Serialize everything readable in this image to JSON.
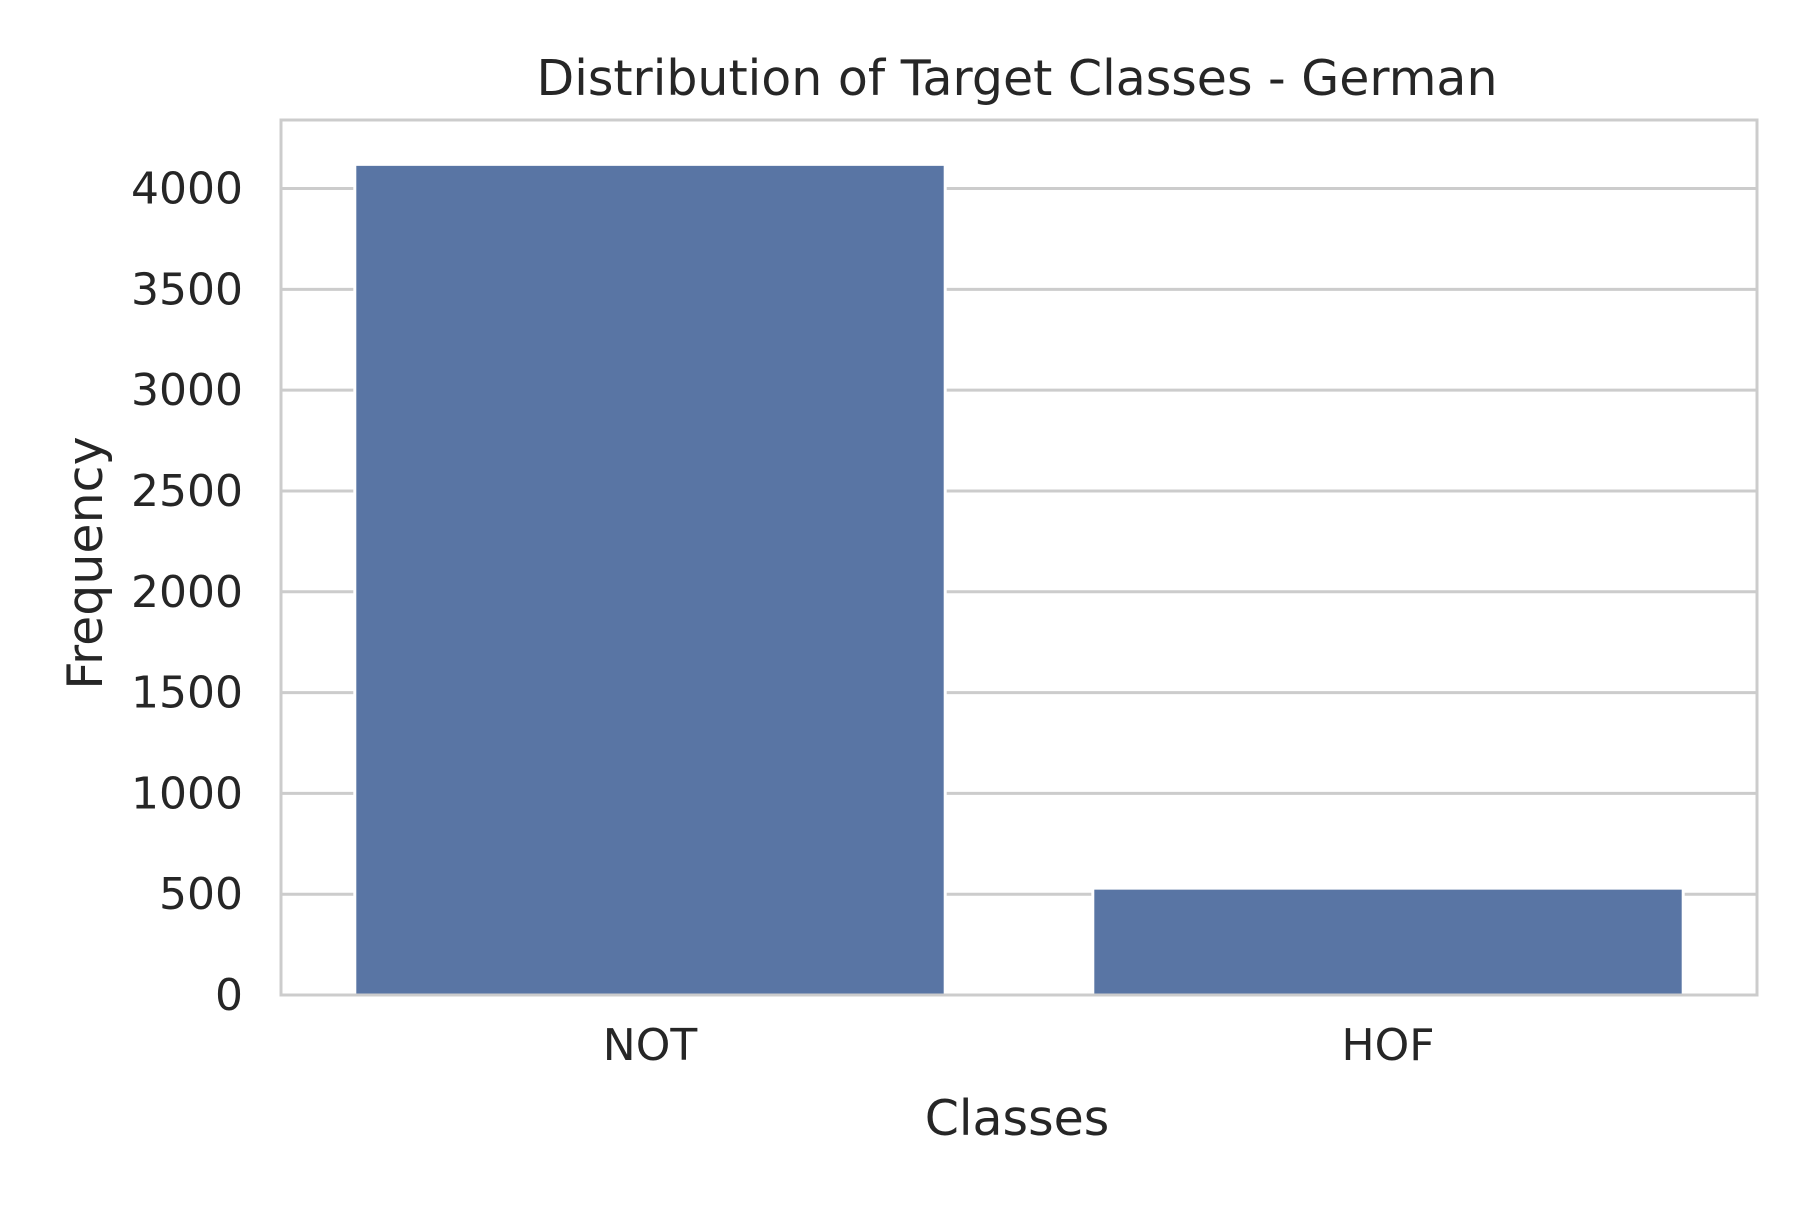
{
  "chart_data": {
    "type": "bar",
    "title": "Distribution of Target Classes - German",
    "xlabel": "Classes",
    "ylabel": "Frequency",
    "categories": [
      "NOT",
      "HOF"
    ],
    "values": [
      4120,
      530
    ],
    "ylim": [
      0,
      4340
    ],
    "yticks": [
      0,
      500,
      1000,
      1500,
      2000,
      2500,
      3000,
      3500,
      4000
    ],
    "grid": true,
    "bar_color": "#5975a4",
    "grid_color": "#cccccc",
    "frame_color": "#cccccc",
    "text_color": "#262626"
  }
}
